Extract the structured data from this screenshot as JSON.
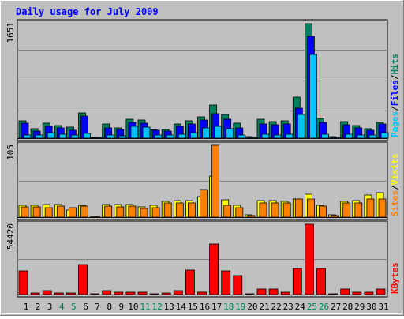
{
  "colors": {
    "background": "#c0c0c0",
    "frame": "#808080",
    "title_color": "#0000ff",
    "hits": "#00805c",
    "files": "#0000ff",
    "pages": "#00c0ff",
    "visits": "#ffff00",
    "sites": "#ff8000",
    "kbytes": "#ff0000",
    "weekend_label": "#00805c",
    "weekday_label": "#000000"
  },
  "chart_data": {
    "type": "bar",
    "title": "Daily usage for July 2009",
    "days": [
      "1",
      "2",
      "3",
      "4",
      "5",
      "6",
      "7",
      "8",
      "9",
      "10",
      "11",
      "12",
      "13",
      "14",
      "15",
      "16",
      "17",
      "18",
      "19",
      "20",
      "21",
      "22",
      "23",
      "24",
      "25",
      "26",
      "27",
      "28",
      "29",
      "30",
      "31"
    ],
    "weekend_days": [
      "4",
      "5",
      "11",
      "12",
      "18",
      "19",
      "25",
      "26"
    ],
    "panels": [
      {
        "id": "hits_files_pages",
        "legend": [
          "Pages",
          "Files",
          "Hits"
        ],
        "legend_separator": "/",
        "ymax_label": "1651",
        "ylim": [
          0,
          1651
        ],
        "series": [
          {
            "name": "Hits",
            "values": [
              250,
              140,
              220,
              180,
              160,
              370,
              0,
              210,
              150,
              270,
              260,
              130,
              120,
              210,
              250,
              310,
              480,
              340,
              220,
              20,
              270,
              240,
              250,
              590,
              1651,
              290,
              20,
              240,
              180,
              140,
              230
            ]
          },
          {
            "name": "Files",
            "values": [
              220,
              100,
              170,
              150,
              110,
              320,
              0,
              150,
              120,
              230,
              220,
              110,
              100,
              170,
              200,
              260,
              350,
              270,
              150,
              10,
              200,
              190,
              200,
              430,
              1470,
              230,
              10,
              190,
              150,
              110,
              200
            ]
          },
          {
            "name": "Pages",
            "values": [
              50,
              40,
              80,
              60,
              50,
              70,
              0,
              40,
              30,
              170,
              160,
              50,
              40,
              60,
              80,
              150,
              170,
              140,
              40,
              5,
              60,
              50,
              60,
              340,
              1210,
              60,
              5,
              60,
              40,
              50,
              80
            ]
          }
        ]
      },
      {
        "id": "visits_sites",
        "legend": [
          "Sites",
          "Visits"
        ],
        "legend_separator": "/",
        "ymax_label": "105",
        "ylim": [
          0,
          105
        ],
        "series": [
          {
            "name": "Visits",
            "values": [
              17,
              17,
              18,
              19,
              10,
              17,
              0,
              19,
              19,
              18,
              15,
              17,
              23,
              24,
              24,
              30,
              60,
              25,
              17,
              3,
              24,
              24,
              23,
              26,
              33,
              17,
              3,
              23,
              24,
              32,
              36
            ]
          },
          {
            "name": "Sites",
            "values": [
              15,
              15,
              14,
              16,
              14,
              16,
              0,
              16,
              15,
              16,
              13,
              14,
              21,
              21,
              21,
              40,
              105,
              17,
              14,
              2,
              21,
              21,
              21,
              26,
              27,
              16,
              2,
              21,
              21,
              26,
              26
            ]
          }
        ]
      },
      {
        "id": "kbytes",
        "legend": [
          "KBytes"
        ],
        "legend_separator": "",
        "ymax_label": "54420",
        "ylim": [
          0,
          54420
        ],
        "series": [
          {
            "name": "KBytes",
            "values": [
              18500,
              1500,
              3000,
              1500,
              1500,
              23500,
              0,
              3000,
              2000,
              2000,
              2000,
              500,
              1000,
              3000,
              19000,
              2000,
              39000,
              18500,
              14500,
              500,
              4000,
              4500,
              2000,
              20000,
              54420,
              20000,
              500,
              4000,
              2000,
              2000,
              4000
            ]
          }
        ]
      }
    ]
  }
}
